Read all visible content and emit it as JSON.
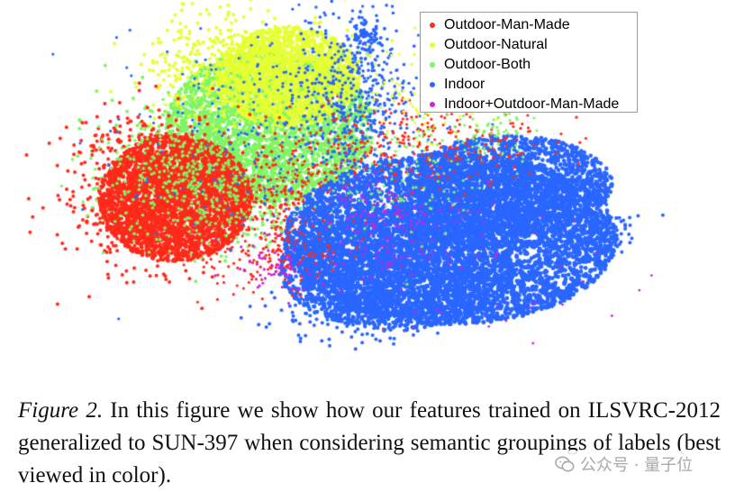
{
  "chart_data": {
    "type": "scatter",
    "title": "",
    "xlabel": "",
    "ylabel": "",
    "grid": false,
    "legend_position": "top-right",
    "series": [
      {
        "name": "Outdoor-Man-Made",
        "color": "#ff2a1a"
      },
      {
        "name": "Outdoor-Natural",
        "color": "#e6ff33"
      },
      {
        "name": "Outdoor-Both",
        "color": "#7ff562"
      },
      {
        "name": "Indoor",
        "color": "#2a66ff"
      },
      {
        "name": "Indoor+Outdoor-Man-Made",
        "color": "#cc22dd"
      }
    ]
  },
  "caption": {
    "label": "Figure 2.",
    "text": " In this figure we show how our features trained on ILSVRC-2012 generalized to SUN-397 when considering semantic groupings of labels (best viewed in color)."
  },
  "watermark": {
    "text": "公众号 · 量子位"
  }
}
